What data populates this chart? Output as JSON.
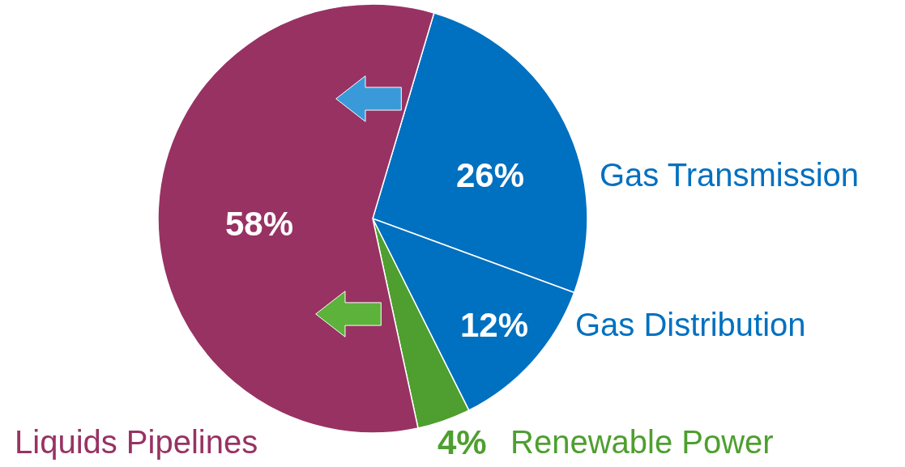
{
  "chart_data": {
    "type": "pie",
    "categories": [
      "Gas Transmission",
      "Gas Distribution",
      "Renewable Power",
      "Liquids Pipelines"
    ],
    "values": [
      26,
      12,
      4,
      58
    ],
    "colors": [
      "#0070c0",
      "#0070c0",
      "#4e9f2f",
      "#983263"
    ],
    "value_labels": [
      "26%",
      "12%",
      "4%",
      "58%"
    ]
  }
}
